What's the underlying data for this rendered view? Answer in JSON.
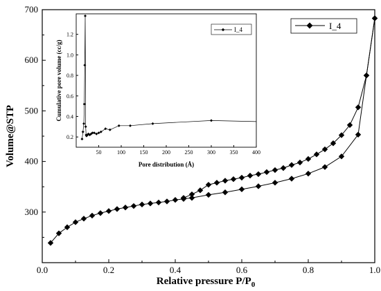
{
  "chart_data": [
    {
      "type": "line",
      "xlabel": "Relative pressure P/P",
      "xlabel_subscript": "0",
      "ylabel": "Volume@STP",
      "xlim": [
        0.0,
        1.0
      ],
      "ylim": [
        200,
        700
      ],
      "xticks": [
        "0.0",
        "0.2",
        "0.4",
        "0.6",
        "0.8",
        "1.0"
      ],
      "yticks": [
        "300",
        "400",
        "500",
        "600",
        "700"
      ],
      "legend_position": "top-right",
      "grid": false,
      "color": "#000000",
      "marker": "diamond",
      "series": [
        {
          "name": "I_4",
          "branch": "adsorption",
          "x": [
            0.025,
            0.05,
            0.075,
            0.1,
            0.125,
            0.15,
            0.175,
            0.2,
            0.225,
            0.25,
            0.275,
            0.3,
            0.325,
            0.35,
            0.375,
            0.4,
            0.425,
            0.45,
            0.5,
            0.55,
            0.6,
            0.65,
            0.7,
            0.75,
            0.8,
            0.85,
            0.9,
            0.95,
            0.975,
            1.0
          ],
          "y": [
            239,
            258,
            270,
            280,
            287,
            293,
            298,
            302,
            306,
            309,
            312,
            315,
            317,
            319,
            321,
            324,
            326,
            328,
            334,
            339,
            345,
            351,
            358,
            366,
            376,
            389,
            410,
            453,
            570,
            683
          ]
        },
        {
          "name": "I_4",
          "branch": "desorption",
          "x": [
            1.0,
            0.975,
            0.95,
            0.925,
            0.9,
            0.875,
            0.85,
            0.825,
            0.8,
            0.775,
            0.75,
            0.725,
            0.7,
            0.675,
            0.65,
            0.625,
            0.6,
            0.575,
            0.55,
            0.525,
            0.5,
            0.475,
            0.45,
            0.425
          ],
          "y": [
            683,
            570,
            507,
            472,
            452,
            436,
            424,
            414,
            405,
            398,
            393,
            387,
            383,
            379,
            375,
            372,
            368,
            365,
            362,
            358,
            354,
            343,
            335,
            328
          ]
        }
      ]
    },
    {
      "type": "line",
      "position": "inset",
      "xlabel": "Pore distribution (Å)",
      "ylabel": "Cumulative pore volume (cc/g)",
      "xlim": [
        0,
        400
      ],
      "ylim": [
        0.1,
        1.4
      ],
      "xticks": [
        "50",
        "100",
        "150",
        "200",
        "250",
        "300",
        "350",
        "400"
      ],
      "yticks": [
        "0.2",
        "0.4",
        "0.6",
        "0.8",
        "1.0",
        "1.2"
      ],
      "legend_position": "top-right",
      "grid": false,
      "color": "#000000",
      "marker": "diamond",
      "series": [
        {
          "name": "I_4",
          "x": [
            13,
            15,
            17,
            18,
            19,
            20,
            21,
            22,
            23,
            25,
            27,
            30,
            33,
            36,
            40,
            45,
            50,
            55,
            65,
            75,
            95,
            120,
            170,
            300,
            400
          ],
          "y": [
            0.18,
            0.25,
            0.33,
            0.52,
            0.9,
            1.38,
            0.3,
            0.22,
            0.21,
            0.22,
            0.23,
            0.22,
            0.23,
            0.24,
            0.24,
            0.23,
            0.24,
            0.25,
            0.28,
            0.27,
            0.31,
            0.31,
            0.33,
            0.36,
            0.35
          ]
        }
      ]
    }
  ]
}
